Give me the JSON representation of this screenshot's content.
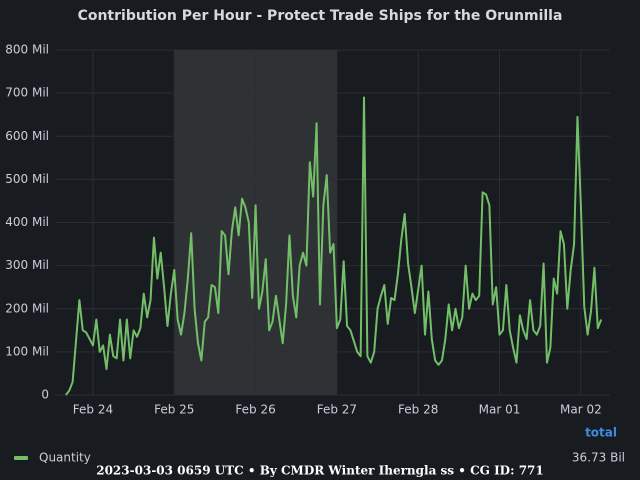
{
  "chart_data": {
    "type": "line",
    "title": "Contribution Per Hour - Protect Trade Ships for the Orunmilla",
    "x": [
      -8,
      -7,
      -6,
      -5,
      -4,
      -3,
      -2,
      -1,
      0,
      1,
      2,
      3,
      4,
      5,
      6,
      7,
      8,
      9,
      10,
      11,
      12,
      13,
      14,
      15,
      16,
      17,
      18,
      19,
      20,
      21,
      22,
      23,
      24,
      25,
      26,
      27,
      28,
      29,
      30,
      31,
      32,
      33,
      34,
      35,
      36,
      37,
      38,
      39,
      40,
      41,
      42,
      43,
      44,
      45,
      46,
      47,
      48,
      49,
      50,
      51,
      52,
      53,
      54,
      55,
      56,
      57,
      58,
      59,
      60,
      61,
      62,
      63,
      64,
      65,
      66,
      67,
      68,
      69,
      70,
      71,
      72,
      73,
      74,
      75,
      76,
      77,
      78,
      79,
      80,
      81,
      82,
      83,
      84,
      85,
      86,
      87,
      88,
      89,
      90,
      91,
      92,
      93,
      94,
      95,
      96,
      97,
      98,
      99,
      100,
      101,
      102,
      103,
      104,
      105,
      106,
      107,
      108,
      109,
      110,
      111,
      112,
      113,
      114,
      115,
      116,
      117,
      118,
      119,
      120,
      121,
      122,
      123,
      124,
      125,
      126,
      127,
      128,
      129,
      130,
      131,
      132,
      133,
      134,
      135,
      136,
      137,
      138,
      139,
      140,
      141,
      142,
      143,
      144,
      145,
      146,
      147,
      148,
      149,
      150
    ],
    "series": [
      {
        "name": "Quantity",
        "color": "#73bf69",
        "total": "36.73 Bil",
        "values": [
          0,
          10,
          30,
          125,
          220,
          150,
          145,
          130,
          115,
          175,
          100,
          115,
          60,
          140,
          90,
          85,
          175,
          80,
          175,
          85,
          150,
          135,
          155,
          235,
          180,
          220,
          365,
          270,
          330,
          250,
          160,
          235,
          290,
          175,
          140,
          190,
          270,
          375,
          200,
          120,
          80,
          170,
          180,
          255,
          250,
          190,
          380,
          370,
          280,
          380,
          435,
          370,
          455,
          435,
          400,
          225,
          440,
          200,
          240,
          315,
          150,
          170,
          230,
          175,
          120,
          210,
          370,
          230,
          180,
          300,
          330,
          300,
          540,
          460,
          630,
          210,
          440,
          510,
          330,
          350,
          155,
          175,
          310,
          160,
          150,
          125,
          100,
          90,
          690,
          90,
          75,
          100,
          200,
          230,
          255,
          165,
          225,
          220,
          280,
          360,
          420,
          305,
          250,
          190,
          245,
          300,
          140,
          240,
          130,
          80,
          70,
          80,
          130,
          210,
          150,
          200,
          155,
          180,
          300,
          200,
          235,
          220,
          230,
          470,
          465,
          440,
          210,
          250,
          140,
          150,
          255,
          150,
          110,
          75,
          185,
          150,
          130,
          220,
          150,
          140,
          160,
          305,
          75,
          110,
          270,
          235,
          380,
          350,
          200,
          290,
          350,
          645,
          440,
          205,
          140,
          195,
          295,
          155,
          175
        ]
      }
    ],
    "xlim": [
      -11.2,
      152.6
    ],
    "xticks": [
      {
        "value": 0,
        "label": "Feb 24"
      },
      {
        "value": 24,
        "label": "Feb 25"
      },
      {
        "value": 48,
        "label": "Feb 26"
      },
      {
        "value": 72,
        "label": "Feb 27"
      },
      {
        "value": 96,
        "label": "Feb 28"
      },
      {
        "value": 120,
        "label": "Mar 01"
      },
      {
        "value": 144,
        "label": "Mar 02"
      }
    ],
    "ylim": [
      0,
      800
    ],
    "yticks": [
      0,
      {
        "value": 100,
        "label": "100 Mil"
      },
      {
        "value": 200,
        "label": "200 Mil"
      },
      {
        "value": 300,
        "label": "300 Mil"
      },
      {
        "value": 400,
        "label": "400 Mil"
      },
      {
        "value": 500,
        "label": "500 Mil"
      },
      {
        "value": 600,
        "label": "600 Mil"
      },
      {
        "value": 700,
        "label": "700 Mil"
      },
      {
        "value": 800,
        "label": "800 Mil"
      }
    ],
    "highlight": [
      24,
      72
    ],
    "grid": true,
    "legend_header": "total",
    "footer": "2023-03-03 0659 UTC • By CMDR Winter Iherngla ss • CG ID: 771"
  }
}
